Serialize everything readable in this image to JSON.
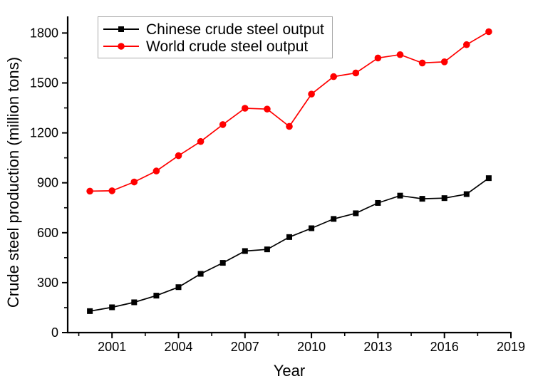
{
  "chart_data": {
    "type": "line",
    "title": "",
    "xlabel": "Year",
    "ylabel": "Crude steel production (million tons)",
    "x": [
      2000,
      2001,
      2002,
      2003,
      2004,
      2005,
      2006,
      2007,
      2008,
      2009,
      2010,
      2011,
      2012,
      2013,
      2014,
      2015,
      2016,
      2017,
      2018
    ],
    "series": [
      {
        "name": "Chinese crude steel output",
        "color": "#000000",
        "marker": "square",
        "values": [
          129,
          152,
          182,
          222,
          273,
          353,
          419,
          490,
          500,
          574,
          627,
          683,
          717,
          779,
          823,
          804,
          808,
          832,
          928
        ]
      },
      {
        "name": "World crude steel output",
        "color": "#ff0000",
        "marker": "circle",
        "values": [
          850,
          852,
          905,
          971,
          1063,
          1148,
          1250,
          1348,
          1343,
          1239,
          1433,
          1538,
          1560,
          1650,
          1670,
          1620,
          1627,
          1730,
          1808
        ]
      }
    ],
    "xlim": [
      1999,
      2019
    ],
    "ylim": [
      0,
      1900
    ],
    "x_major_ticks": [
      2001,
      2004,
      2007,
      2010,
      2013,
      2016,
      2019
    ],
    "x_minor_ticks": [
      1999.5,
      2002.5,
      2005.5,
      2008.5,
      2011.5,
      2014.5,
      2017.5
    ],
    "y_major_ticks": [
      0,
      300,
      600,
      900,
      1200,
      1500,
      1800
    ],
    "y_minor_ticks": [
      150,
      450,
      750,
      1050,
      1350,
      1650
    ],
    "grid": false,
    "legend_position": "top-left-inside"
  },
  "colors": {
    "background": "#ffffff",
    "axis": "#000000",
    "tick_text": "#000000",
    "legend_border": "#aaaaaa",
    "series_chinese": "#000000",
    "series_world": "#ff0000"
  }
}
